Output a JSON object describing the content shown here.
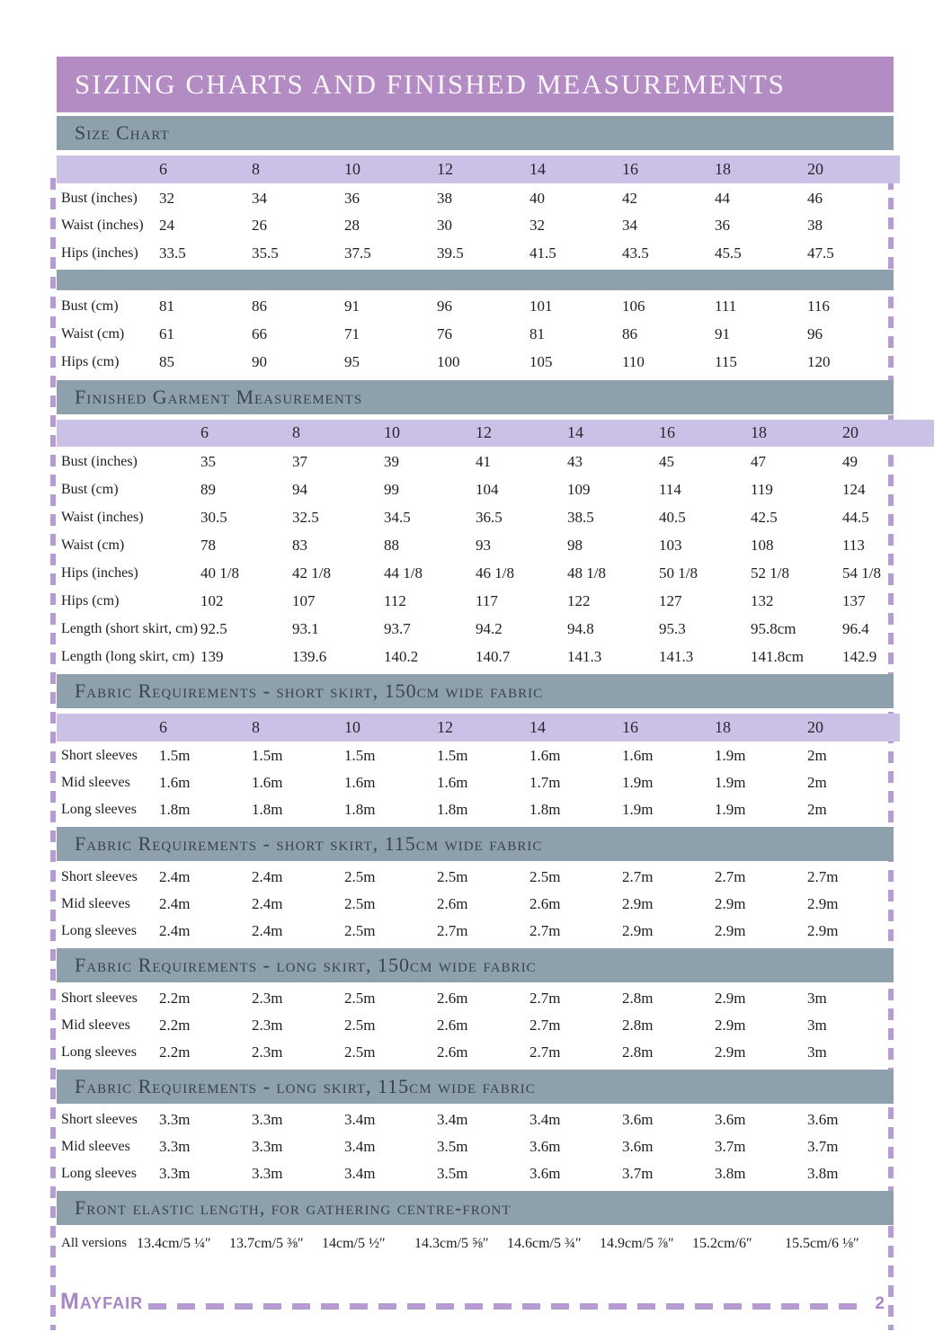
{
  "title": "SIZING CHARTS AND FINISHED MEASUREMENTS",
  "sizes": [
    "6",
    "8",
    "10",
    "12",
    "14",
    "16",
    "18",
    "20"
  ],
  "colors": {
    "accent_purple": "#b48cc4",
    "band_gray": "#8fa0ad",
    "band_text": "#39434c",
    "row_lavender": "#cbc0e5",
    "dash_purple": "#b69cd2",
    "footer_purple": "#a886c5"
  },
  "size_chart": {
    "heading": "Size Chart",
    "inches": {
      "show_sizes": true,
      "rows": [
        {
          "label": "Bust (inches)",
          "values": [
            "32",
            "34",
            "36",
            "38",
            "40",
            "42",
            "44",
            "46"
          ]
        },
        {
          "label": "Waist (inches)",
          "values": [
            "24",
            "26",
            "28",
            "30",
            "32",
            "34",
            "36",
            "38"
          ]
        },
        {
          "label": "Hips (inches)",
          "values": [
            "33.5",
            "35.5",
            "37.5",
            "39.5",
            "41.5",
            "43.5",
            "45.5",
            "47.5"
          ]
        }
      ]
    },
    "cm": {
      "show_sizes": false,
      "rows": [
        {
          "label": "Bust (cm)",
          "values": [
            "81",
            "86",
            "91",
            "96",
            "101",
            "106",
            "111",
            "116"
          ]
        },
        {
          "label": "Waist (cm)",
          "values": [
            "61",
            "66",
            "71",
            "76",
            "81",
            "86",
            "91",
            "96"
          ]
        },
        {
          "label": "Hips (cm)",
          "values": [
            "85",
            "90",
            "95",
            "100",
            "105",
            "110",
            "115",
            "120"
          ]
        }
      ]
    }
  },
  "finished": {
    "heading": "Finished Garment Measurements",
    "table": {
      "show_sizes": true,
      "rows": [
        {
          "label": "Bust (inches)",
          "values": [
            "35",
            "37",
            "39",
            "41",
            "43",
            "45",
            "47",
            "49"
          ]
        },
        {
          "label": "Bust (cm)",
          "values": [
            "89",
            "94",
            "99",
            "104",
            "109",
            "114",
            "119",
            "124"
          ]
        },
        {
          "label": "Waist (inches)",
          "values": [
            "30.5",
            "32.5",
            "34.5",
            "36.5",
            "38.5",
            "40.5",
            "42.5",
            "44.5"
          ]
        },
        {
          "label": "Waist (cm)",
          "values": [
            "78",
            "83",
            "88",
            "93",
            "98",
            "103",
            "108",
            "113"
          ]
        },
        {
          "label": "Hips (inches)",
          "values": [
            "40 1/8",
            "42 1/8",
            "44 1/8",
            "46 1/8",
            "48 1/8",
            "50 1/8",
            "52 1/8",
            "54 1/8"
          ]
        },
        {
          "label": "Hips (cm)",
          "values": [
            "102",
            "107",
            "112",
            "117",
            "122",
            "127",
            "132",
            "137"
          ]
        },
        {
          "label": "Length (short skirt, cm)",
          "values": [
            "92.5",
            "93.1",
            "93.7",
            "94.2",
            "94.8",
            "95.3",
            "95.8cm",
            "96.4"
          ]
        },
        {
          "label": "Length (long skirt, cm)",
          "values": [
            "139",
            "139.6",
            "140.2",
            "140.7",
            "141.3",
            "141.3",
            "141.8cm",
            "142.9"
          ]
        }
      ]
    }
  },
  "fabric_short_150": {
    "heading": "Fabric Requirements - short skirt, 150cm wide fabric",
    "table": {
      "show_sizes": true,
      "rows": [
        {
          "label": "Short sleeves",
          "values": [
            "1.5m",
            "1.5m",
            "1.5m",
            "1.5m",
            "1.6m",
            "1.6m",
            "1.9m",
            "2m"
          ]
        },
        {
          "label": "Mid sleeves",
          "values": [
            "1.6m",
            "1.6m",
            "1.6m",
            "1.6m",
            "1.7m",
            "1.9m",
            "1.9m",
            "2m"
          ]
        },
        {
          "label": "Long sleeves",
          "values": [
            "1.8m",
            "1.8m",
            "1.8m",
            "1.8m",
            "1.8m",
            "1.9m",
            "1.9m",
            "2m"
          ]
        }
      ]
    }
  },
  "fabric_short_115": {
    "heading": "Fabric Requirements - short skirt, 115cm wide fabric",
    "table": {
      "show_sizes": false,
      "rows": [
        {
          "label": "Short sleeves",
          "values": [
            "2.4m",
            "2.4m",
            "2.5m",
            "2.5m",
            "2.5m",
            "2.7m",
            "2.7m",
            "2.7m"
          ]
        },
        {
          "label": "Mid sleeves",
          "values": [
            "2.4m",
            "2.4m",
            "2.5m",
            "2.6m",
            "2.6m",
            "2.9m",
            "2.9m",
            "2.9m"
          ]
        },
        {
          "label": "Long sleeves",
          "values": [
            "2.4m",
            "2.4m",
            "2.5m",
            "2.7m",
            "2.7m",
            "2.9m",
            "2.9m",
            "2.9m"
          ]
        }
      ]
    }
  },
  "fabric_long_150": {
    "heading": "Fabric Requirements - long skirt, 150cm wide fabric",
    "table": {
      "show_sizes": false,
      "rows": [
        {
          "label": "Short sleeves",
          "values": [
            "2.2m",
            "2.3m",
            "2.5m",
            "2.6m",
            "2.7m",
            "2.8m",
            "2.9m",
            "3m"
          ]
        },
        {
          "label": "Mid sleeves",
          "values": [
            "2.2m",
            "2.3m",
            "2.5m",
            "2.6m",
            "2.7m",
            "2.8m",
            "2.9m",
            "3m"
          ]
        },
        {
          "label": "Long sleeves",
          "values": [
            "2.2m",
            "2.3m",
            "2.5m",
            "2.6m",
            "2.7m",
            "2.8m",
            "2.9m",
            "3m"
          ]
        }
      ]
    }
  },
  "fabric_long_115": {
    "heading": "Fabric Requirements - long skirt, 115cm wide fabric",
    "table": {
      "show_sizes": false,
      "rows": [
        {
          "label": "Short sleeves",
          "values": [
            "3.3m",
            "3.3m",
            "3.4m",
            "3.4m",
            "3.4m",
            "3.6m",
            "3.6m",
            "3.6m"
          ]
        },
        {
          "label": "Mid sleeves",
          "values": [
            "3.3m",
            "3.3m",
            "3.4m",
            "3.5m",
            "3.6m",
            "3.6m",
            "3.7m",
            "3.7m"
          ]
        },
        {
          "label": "Long sleeves",
          "values": [
            "3.3m",
            "3.3m",
            "3.4m",
            "3.5m",
            "3.6m",
            "3.7m",
            "3.8m",
            "3.8m"
          ]
        }
      ]
    }
  },
  "elastic": {
    "heading": "Front elastic length, for gathering centre-front",
    "table": {
      "show_sizes": false,
      "rows": [
        {
          "label": "All versions",
          "values": [
            "13.4cm/5 ¼″",
            "13.7cm/5 ⅜″",
            "14cm/5 ½″",
            "14.3cm/5 ⅝″",
            "14.6cm/5 ¾″",
            "14.9cm/5 ⅞″",
            "15.2cm/6″",
            "15.5cm/6 ⅛″"
          ]
        }
      ]
    }
  },
  "footer": {
    "brand": "Mayfair",
    "page_number": "2"
  }
}
